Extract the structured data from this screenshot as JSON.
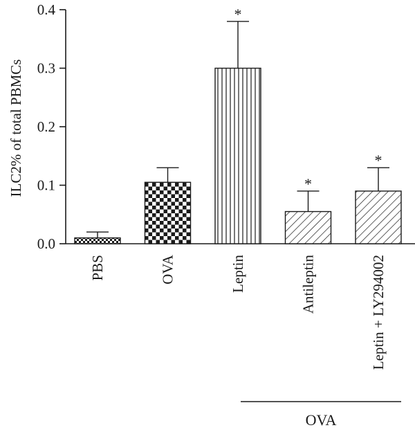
{
  "chart_data": {
    "type": "bar",
    "ylabel": "ILC2% of total PBMCs",
    "ylim": [
      0,
      0.4
    ],
    "yticks": [
      0.0,
      0.1,
      0.2,
      0.3,
      0.4
    ],
    "ytick_labels": [
      "0.0",
      "0.1",
      "0.2",
      "0.3",
      "0.4"
    ],
    "categories": [
      "PBS",
      "OVA",
      "Leptin",
      "Antileptin",
      "Leptin + LY294002"
    ],
    "values": [
      0.01,
      0.105,
      0.3,
      0.055,
      0.09
    ],
    "error_upper": [
      0.02,
      0.13,
      0.38,
      0.09,
      0.13
    ],
    "significance": [
      "",
      "",
      "*",
      "*",
      "*"
    ],
    "fill_patterns": [
      "checker-fine",
      "checker-coarse",
      "vertical-lines",
      "diagonal-lines",
      "diagonal-lines"
    ],
    "group_label": "OVA",
    "group_categories": [
      "Leptin",
      "Antileptin",
      "Leptin + LY294002"
    ],
    "bar_color": "#1a1a1a",
    "background_color": "#ffffff"
  }
}
